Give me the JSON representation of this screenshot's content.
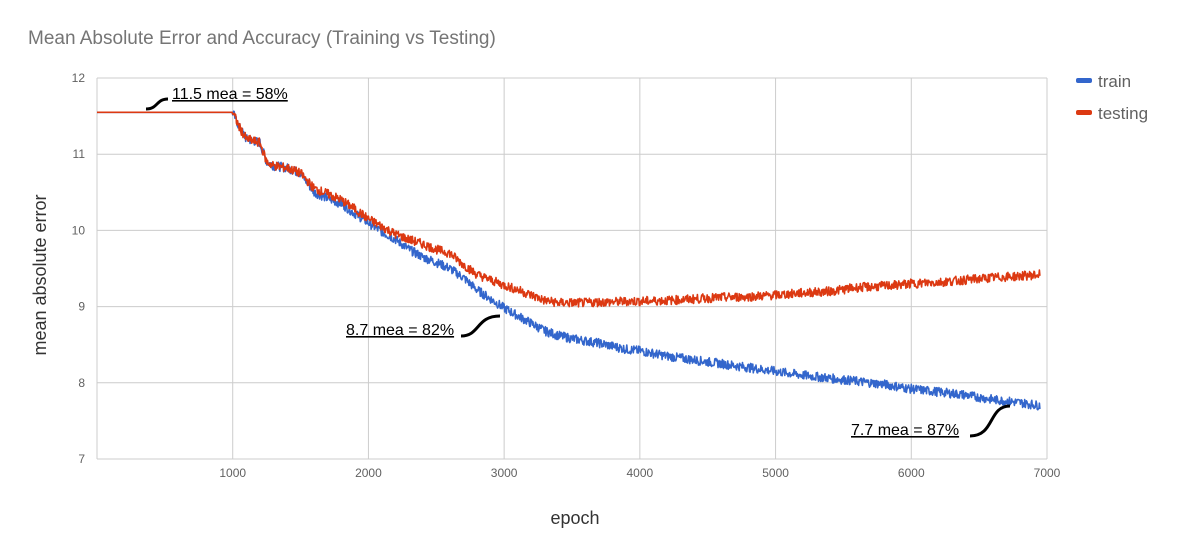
{
  "chart_data": {
    "type": "line",
    "title": "Mean Absolute Error and Accuracy (Training vs Testing)",
    "xlabel": "epoch",
    "ylabel": "mean absolute error",
    "xlim": [
      0,
      7000
    ],
    "ylim": [
      7,
      12
    ],
    "xticks": [
      1000,
      2000,
      3000,
      4000,
      5000,
      6000,
      7000
    ],
    "yticks": [
      7,
      8,
      9,
      10,
      11,
      12
    ],
    "grid": true,
    "legend_position": "top-right",
    "series": [
      {
        "name": "train",
        "color": "#3366cc",
        "x": [
          0,
          1000,
          1050,
          1100,
          1200,
          1250,
          1300,
          1400,
          1500,
          1600,
          1700,
          1800,
          1900,
          2000,
          2100,
          2200,
          2300,
          2400,
          2500,
          2600,
          2700,
          2800,
          2900,
          3000,
          3100,
          3200,
          3300,
          3400,
          3500,
          3600,
          3700,
          3800,
          3900,
          4000,
          4200,
          4400,
          4600,
          4800,
          5000,
          5200,
          5400,
          5600,
          5800,
          6000,
          6200,
          6400,
          6600,
          6800,
          6950
        ],
        "y": [
          11.55,
          11.55,
          11.35,
          11.2,
          11.15,
          10.9,
          10.85,
          10.82,
          10.75,
          10.5,
          10.42,
          10.35,
          10.22,
          10.1,
          9.98,
          9.88,
          9.75,
          9.65,
          9.58,
          9.5,
          9.38,
          9.22,
          9.1,
          8.98,
          8.88,
          8.78,
          8.68,
          8.62,
          8.58,
          8.55,
          8.52,
          8.48,
          8.44,
          8.42,
          8.35,
          8.3,
          8.25,
          8.2,
          8.15,
          8.1,
          8.06,
          8.02,
          7.98,
          7.92,
          7.88,
          7.84,
          7.78,
          7.74,
          7.7
        ]
      },
      {
        "name": "testing",
        "color": "#dc3912",
        "x": [
          0,
          1000,
          1050,
          1100,
          1200,
          1250,
          1300,
          1400,
          1500,
          1600,
          1700,
          1800,
          1900,
          2000,
          2100,
          2200,
          2300,
          2400,
          2500,
          2600,
          2700,
          2800,
          2900,
          3000,
          3100,
          3200,
          3300,
          3400,
          3500,
          3600,
          3700,
          3800,
          3900,
          4000,
          4200,
          4400,
          4600,
          4800,
          5000,
          5200,
          5400,
          5600,
          5800,
          6000,
          6200,
          6400,
          6600,
          6800,
          6950
        ],
        "y": [
          11.55,
          11.55,
          11.35,
          11.2,
          11.15,
          10.9,
          10.85,
          10.82,
          10.75,
          10.55,
          10.48,
          10.4,
          10.28,
          10.15,
          10.05,
          9.95,
          9.88,
          9.82,
          9.75,
          9.7,
          9.55,
          9.42,
          9.35,
          9.28,
          9.22,
          9.15,
          9.08,
          9.05,
          9.05,
          9.05,
          9.06,
          9.06,
          9.07,
          9.07,
          9.08,
          9.1,
          9.12,
          9.13,
          9.15,
          9.18,
          9.2,
          9.25,
          9.27,
          9.3,
          9.32,
          9.35,
          9.38,
          9.4,
          9.42
        ]
      }
    ],
    "annotations": [
      {
        "text": "11.5 mea = 58%"
      },
      {
        "text": "8.7 mea = 82%"
      },
      {
        "text": "7.7 mea = 87%"
      }
    ]
  }
}
